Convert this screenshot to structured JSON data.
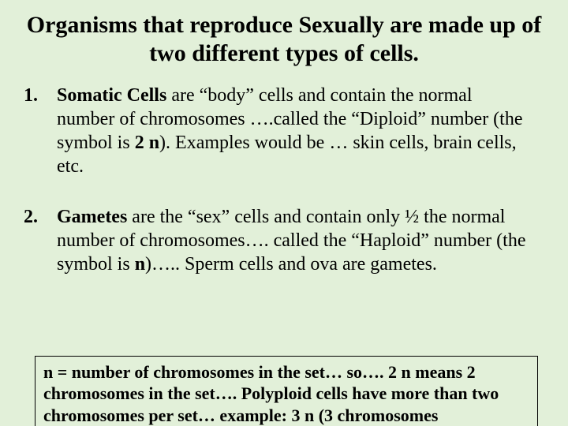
{
  "colors": {
    "background": "#e2f0d9",
    "text": "#000000",
    "note_border": "#000000"
  },
  "typography": {
    "font_family": "Times New Roman",
    "title_fontsize_pt": 30,
    "body_fontsize_pt": 24,
    "note_fontsize_pt": 22
  },
  "title": "Organisms that reproduce Sexually are made up of two different types of cells.",
  "items": [
    {
      "number": "1.",
      "term": "Somatic Cells",
      "text_before_sym": " are “body” cells and contain the normal number of chromosomes ….called the “Diploid” number (the symbol is ",
      "symbol": "2 n",
      "text_after_sym": "). Examples would be … skin cells, brain cells, etc."
    },
    {
      "number": "2.",
      "term": "Gametes",
      "text_before_sym": " are the “sex” cells and contain only ½ the normal number of chromosomes…. called the “Haploid” number (the symbol is ",
      "symbol": "n",
      "text_after_sym": ")….. Sperm cells and ova are gametes."
    }
  ],
  "note": "n =  number of chromosomes in the set… so…. 2 n means 2 chromosomes in the set…. Polyploid cells have more than two chromosomes per set… example: 3 n (3 chromosomes"
}
